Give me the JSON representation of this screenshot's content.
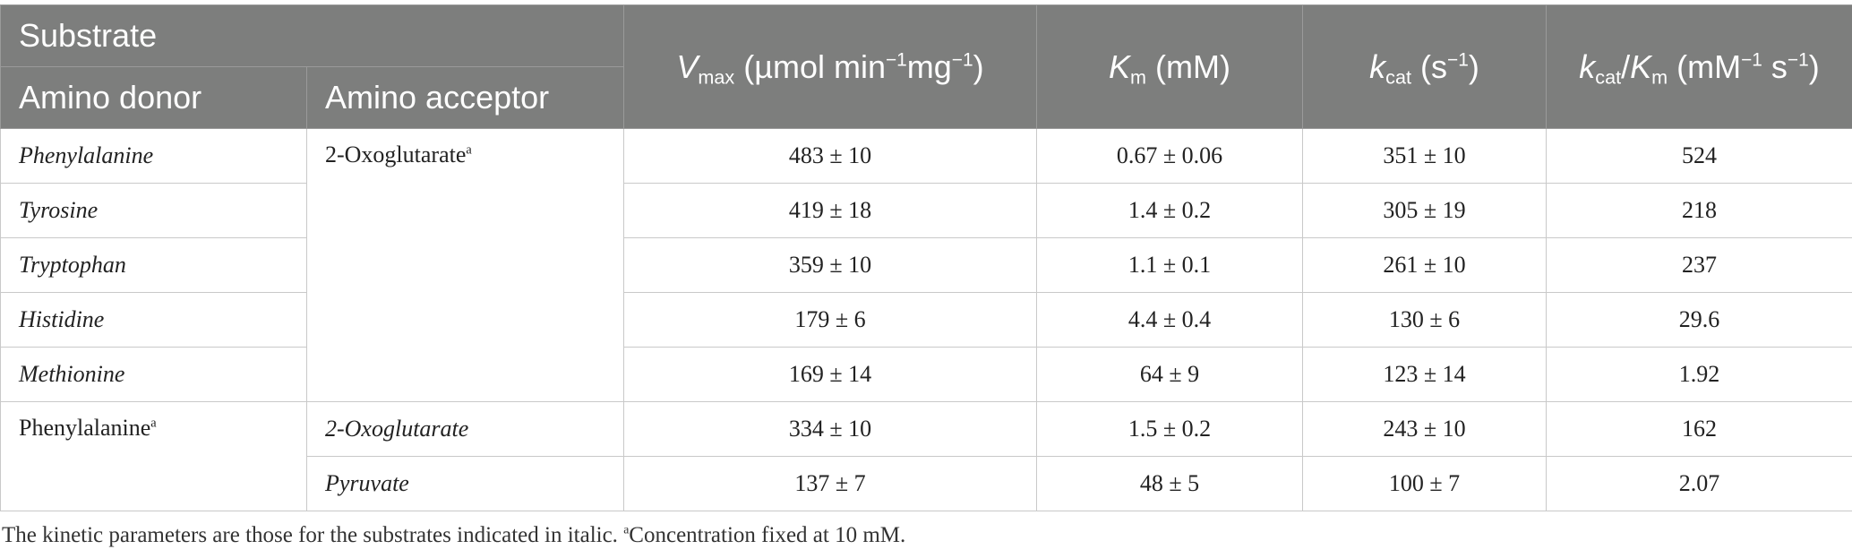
{
  "header": {
    "substrate": "Substrate",
    "amino_donor": "Amino donor",
    "amino_acceptor": "Amino acceptor",
    "vmax": {
      "symbol": "V",
      "sub": "max",
      "unit_pre": "(µmol min",
      "exp1": "−1",
      "unit_mid": "mg",
      "exp2": "−1",
      "unit_post": ")"
    },
    "km": {
      "symbol": "K",
      "sub": "m",
      "unit": "(mM)"
    },
    "kcat": {
      "symbol": "k",
      "sub": "cat",
      "unit_pre": "(s",
      "exp": "−1",
      "unit_post": ")"
    },
    "kcat_km": {
      "symbol1": "k",
      "sub1": "cat",
      "slash": "/",
      "symbol2": "K",
      "sub2": "m",
      "unit_pre": "(mM",
      "exp1": "−1",
      "unit_mid": " s",
      "exp2": "−1",
      "unit_post": ")"
    }
  },
  "rows": [
    {
      "donor": "Phenylalanine",
      "acceptor": "2-Oxoglutarate",
      "acceptor_sup": "a",
      "vmax": "483 ± 10",
      "km": "0.67 ± 0.06",
      "kcat": "351 ± 10",
      "kcat_km": "524"
    },
    {
      "donor": "Tyrosine",
      "vmax": "419 ± 18",
      "km": "1.4 ± 0.2",
      "kcat": "305 ± 19",
      "kcat_km": "218"
    },
    {
      "donor": "Tryptophan",
      "vmax": "359 ± 10",
      "km": "1.1 ± 0.1",
      "kcat": "261 ± 10",
      "kcat_km": "237"
    },
    {
      "donor": "Histidine",
      "vmax": "179 ± 6",
      "km": "4.4 ± 0.4",
      "kcat": "130 ± 6",
      "kcat_km": "29.6"
    },
    {
      "donor": "Methionine",
      "vmax": "169 ± 14",
      "km": "64 ± 9",
      "kcat": "123 ± 14",
      "kcat_km": "1.92"
    },
    {
      "donor": "Phenylalanine",
      "donor_sup": "a",
      "acceptor": "2-Oxoglutarate",
      "vmax": "334 ± 10",
      "km": "1.5 ± 0.2",
      "kcat": "243 ± 10",
      "kcat_km": "162"
    },
    {
      "acceptor": "Pyruvate",
      "vmax": "137 ± 7",
      "km": "48 ± 5",
      "kcat": "100 ± 7",
      "kcat_km": "2.07"
    }
  ],
  "footnote": {
    "text": "The kinetic parameters are those for the substrates indicated in italic. ",
    "sup": "a",
    "text2": "Concentration fixed at 10 mM."
  }
}
